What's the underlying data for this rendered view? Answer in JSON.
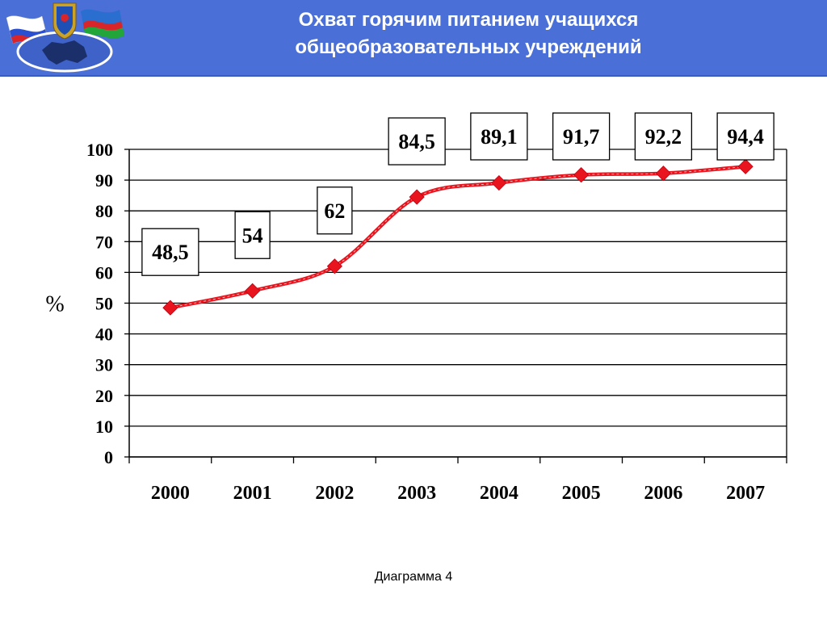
{
  "header": {
    "title_line1": "Охват горячим питанием учащихся",
    "title_line2": "общеобразовательных учреждений",
    "emblem_icon": "regional-emblem-with-flags-icon"
  },
  "chart_data": {
    "type": "line",
    "title": "Охват горячим питанием учащихся общеобразовательных учреждений",
    "categories": [
      "2000",
      "2001",
      "2002",
      "2003",
      "2004",
      "2005",
      "2006",
      "2007"
    ],
    "series": [
      {
        "values": [
          48.5,
          54,
          62,
          84.5,
          89.1,
          91.7,
          92.2,
          94.4
        ]
      }
    ],
    "data_labels": [
      "48,5",
      "54",
      "62",
      "84,5",
      "89,1",
      "91,7",
      "92,2",
      "94,4"
    ],
    "ylabel": "%",
    "xlabel": "",
    "ylim": [
      0,
      100
    ],
    "yticks": [
      0,
      10,
      20,
      30,
      40,
      50,
      60,
      70,
      80,
      90,
      100
    ],
    "grid": true,
    "legend": "none",
    "series_color": "#e8141e"
  },
  "caption": "Диаграмма 4"
}
